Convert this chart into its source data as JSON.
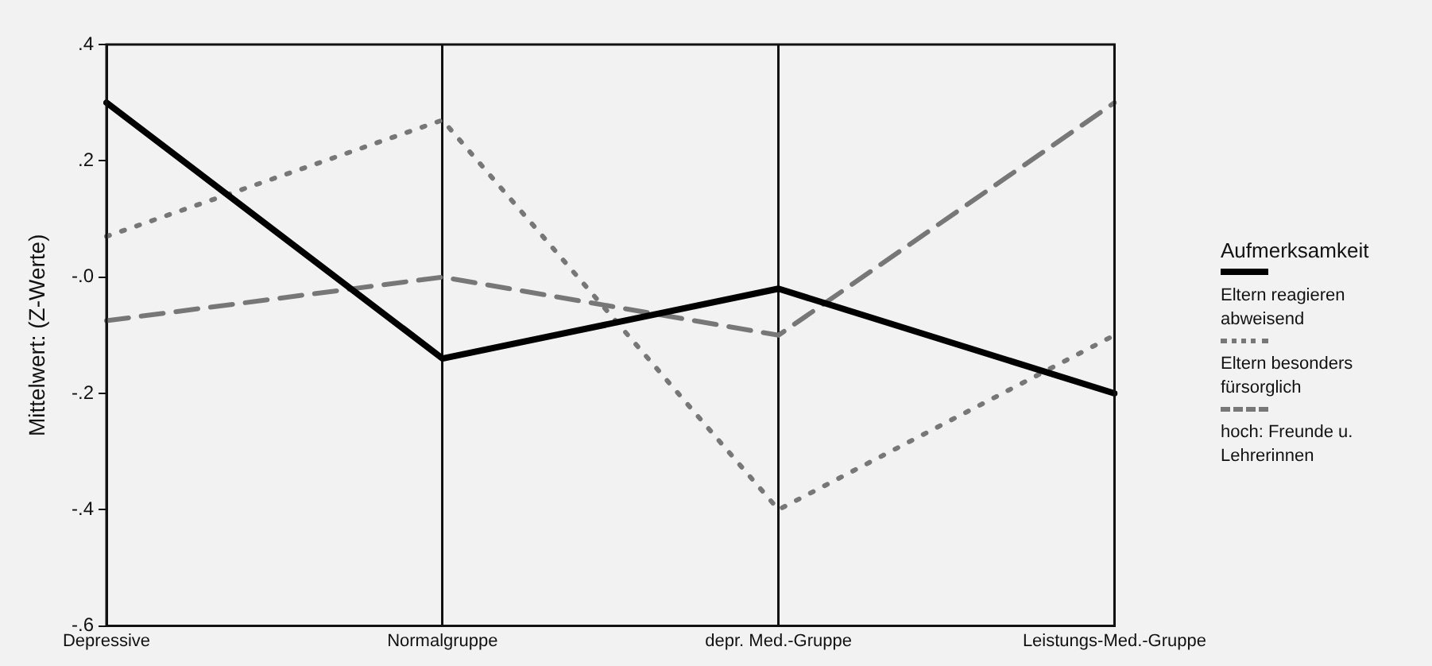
{
  "chart_data": {
    "type": "line",
    "ylabel": "Mittelwert: (Z-Werte)",
    "legend_title": "Aufmerksamkeit",
    "categories": [
      "Depressive",
      "Normalgruppe",
      "depr. Med.-Gruppe",
      "Leistungs-Med.-Gruppe"
    ],
    "series": [
      {
        "name": "Eltern reagieren abweisend",
        "color": "#000000",
        "line_style": "solid",
        "values": [
          0.3,
          -0.14,
          -0.02,
          -0.2
        ]
      },
      {
        "name": "Eltern besonders fürsorglich",
        "color": "#777777",
        "line_style": "dotted",
        "values": [
          0.07,
          0.27,
          -0.4,
          -0.1
        ]
      },
      {
        "name": "hoch: Freunde u. Lehrerinnen",
        "color": "#777777",
        "line_style": "dashed",
        "values": [
          -0.075,
          0.0,
          -0.1,
          0.3
        ]
      }
    ],
    "ylim": [
      -0.6,
      0.4
    ],
    "yticks": [
      {
        "value": 0.4,
        "label": ".4"
      },
      {
        "value": 0.2,
        "label": ".2"
      },
      {
        "value": 0,
        "label": "-.0"
      },
      {
        "value": -0.2,
        "label": "-.2"
      },
      {
        "value": -0.4,
        "label": "-.4"
      },
      {
        "value": -0.6,
        "label": "-.6"
      }
    ],
    "grid": "x",
    "legend": "right",
    "marker": "none"
  }
}
